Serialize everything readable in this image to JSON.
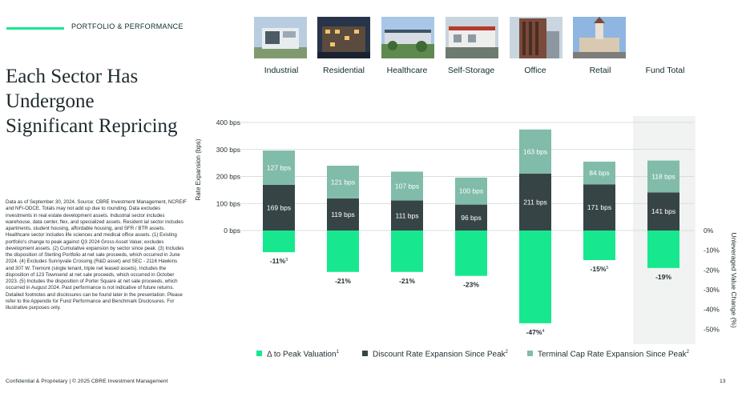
{
  "header": {
    "kicker": "PORTFOLIO & PERFORMANCE"
  },
  "headline": "Each Sector Has Undergone Significant Repricing",
  "notes": "Data as of September 30, 2024. Source: CBRE Investment Management, NCREIF and NFI-ODCE. Totals may not add up due to rounding. Data excludes investments in real estate development assets. Industrial sector includes warehouse, data center, flex, and specialized assets. Resident ial sector includes apartments, student housing, affordable housing, and SFR / BTR assets. Healthcare sector includes life sciences and medical office assets. (1) Existing portfolio's change to peak against Q3 2024 Gross Asset Value; excludes development assets. (2) Cumulative expansion by sector since peak. (3) Includes the disposition of Sterling Portfolio at net sale proceeds, which occurred in June 2024. (4) Excludes Sunnyvale Crossing (R&D asset) and SEC - 2116 Hawkins and 307 W. Tremont (single tenant, triple net leased assets). Includes the disposition of 123 Townsend at net sale proceeds, which occurred in October 2023. (5) Includes the disposition of Porter Square at net sale proceeds, which occurred in August 2024. Past performance is not indicative of future returns. Detailed footnotes and disclosures can be found later in the presentation. Please refer to the Appendix for Fund Performance and Benchmark Disclosures. For illustrative purposes only.",
  "footer": {
    "confidential": "Confidential & Proprietary | © 2025 CBRE Investment Management",
    "page_number": "13"
  },
  "colors": {
    "accent": "#17e88f",
    "dark": "#374446",
    "teal": "#80bca9",
    "fund_bg": "#f1f3f2"
  },
  "sectors": [
    {
      "label": "Industrial",
      "icon": "industrial-building-photo"
    },
    {
      "label": "Residential",
      "icon": "residential-building-photo"
    },
    {
      "label": "Healthcare",
      "icon": "healthcare-campus-photo"
    },
    {
      "label": "Self-Storage",
      "icon": "self-storage-facility-photo"
    },
    {
      "label": "Office",
      "icon": "office-tower-photo"
    },
    {
      "label": "Retail",
      "icon": "retail-center-photo"
    },
    {
      "label": "Fund Total",
      "icon": ""
    }
  ],
  "chart_data": {
    "type": "bar",
    "categories": [
      "Industrial",
      "Residential",
      "Healthcare",
      "Self-Storage",
      "Office",
      "Retail",
      "Fund Total"
    ],
    "series": [
      {
        "name": "Δ to Peak Valuation",
        "footnote": "1",
        "axis": "right",
        "values": [
          -11,
          -21,
          -21,
          -23,
          -47,
          -15,
          -19
        ],
        "labels": [
          "-11%",
          "-21%",
          "-21%",
          "-23%",
          "-47%",
          "-15%",
          "-19%"
        ],
        "label_footnotes": [
          "3",
          "",
          "",
          "",
          "4",
          "5",
          ""
        ]
      },
      {
        "name": "Discount Rate Expansion Since Peak",
        "footnote": "2",
        "axis": "left",
        "values": [
          169,
          119,
          111,
          96,
          211,
          171,
          141
        ],
        "labels": [
          "169 bps",
          "119 bps",
          "111 bps",
          "96 bps",
          "211 bps",
          "171 bps",
          "141 bps"
        ]
      },
      {
        "name": "Terminal Cap Rate Expansion Since Peak",
        "footnote": "2",
        "axis": "left",
        "values": [
          127,
          121,
          107,
          100,
          163,
          84,
          118
        ],
        "labels": [
          "127 bps",
          "121 bps",
          "107 bps",
          "100 bps",
          "163 bps",
          "84 bps",
          "118 bps"
        ]
      }
    ],
    "ylabel": "Rate Expansion (bps)",
    "y2label": "Unleveraged Value Change (%)",
    "ylim": [
      0,
      400
    ],
    "y2lim": [
      -50,
      0
    ],
    "yticks": [
      "0 bps",
      "100 bps",
      "200 bps",
      "300 bps",
      "400 bps"
    ],
    "y2ticks": [
      "0%",
      "-10%",
      "-20%",
      "-30%",
      "-40%",
      "-50%"
    ],
    "grid": true,
    "legend_position": "bottom"
  }
}
